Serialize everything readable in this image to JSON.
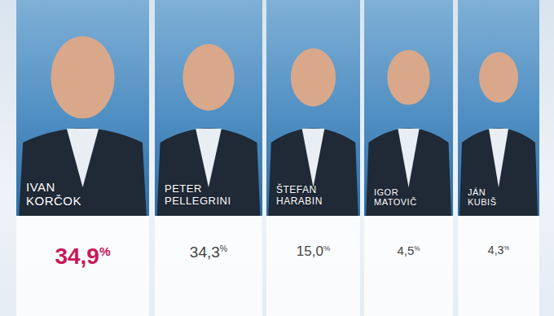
{
  "chart_data": {
    "type": "cards",
    "categories": [
      "IVAN KORČOK",
      "PETER PELLEGRINI",
      "ŠTEFAN HARABIN",
      "IGOR MATOVIČ",
      "JÁN KUBIŠ"
    ],
    "values": [
      34.9,
      34.3,
      15.0,
      4.5,
      4.3
    ],
    "value_labels": [
      "34,9%",
      "34,3%",
      "15,0%",
      "4,5%",
      "4,3%"
    ],
    "data_labels": true,
    "colors": [
      "#c8185a",
      "#444444",
      "#444444",
      "#444444",
      "#444444"
    ]
  }
}
